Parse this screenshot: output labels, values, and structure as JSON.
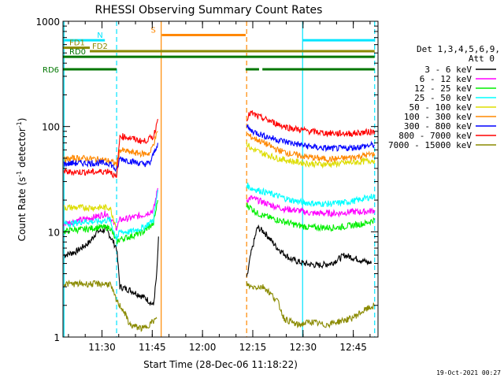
{
  "colors": {
    "bg": "#ffffff",
    "axis": "#000000",
    "cyan": "#00e5ff",
    "orange": "#ff8800",
    "olive": "#8a8a00",
    "green": "#007700"
  },
  "chart_data": {
    "type": "line",
    "title": "RHESSI Observing Summary Count Rates",
    "xlabel": "Start Time (28-Dec-06 11:18:22)",
    "ylabel": "Count Rate (s",
    "ylabel_sup1": "-1",
    "ylabel_mid": " detector",
    "ylabel_sup2": "-1",
    "ylabel_end": ")",
    "x_unit": "minutes after 11:18:22",
    "xlim": [
      0,
      94
    ],
    "ylim": [
      1,
      1000
    ],
    "yscale": "log",
    "x_ticks": [
      {
        "label": "11:30",
        "t": 11.63
      },
      {
        "label": "11:45",
        "t": 26.63
      },
      {
        "label": "12:00",
        "t": 41.63
      },
      {
        "label": "12:15",
        "t": 56.63
      },
      {
        "label": "12:30",
        "t": 71.63
      },
      {
        "label": "12:45",
        "t": 86.63
      }
    ],
    "y_ticks": [
      {
        "label": "1",
        "v": 1
      },
      {
        "label": "10",
        "v": 10
      },
      {
        "label": "100",
        "v": 100
      },
      {
        "label": "1000",
        "v": 1000
      }
    ],
    "timestamp": "19-Oct-2021 00:27",
    "legend": {
      "position": "right",
      "header1": "Det 1,3,4,5,6,9,",
      "header2": "Att 0"
    },
    "flags": [
      {
        "label": "N",
        "color": "#00e5ff",
        "y": 660,
        "segments": [
          [
            0,
            12.5
          ],
          [
            71.5,
            93
          ]
        ]
      },
      {
        "label": "S",
        "color": "#ff8800",
        "y": 740,
        "segments": [
          [
            29.5,
            54.5
          ]
        ]
      },
      {
        "label": "FD1",
        "color": "#8a8a00",
        "y": 560,
        "segments": [
          [
            0,
            8
          ]
        ]
      },
      {
        "label": "FD2",
        "color": "#8a8a00",
        "y": 520,
        "segments": [
          [
            8,
            93
          ]
        ]
      },
      {
        "label": "RD0",
        "color": "#007700",
        "y": 460,
        "segments": [
          [
            0,
            93
          ]
        ]
      },
      {
        "label": "RD6",
        "color": "#007700",
        "y": 350,
        "segments": [
          [
            0,
            16
          ],
          [
            54.5,
            58.5
          ],
          [
            59.5,
            93
          ]
        ]
      }
    ],
    "vlines": [
      {
        "t": 0.3,
        "color": "#00e5ff",
        "style": "solid"
      },
      {
        "t": 16.0,
        "color": "#00e5ff",
        "style": "dashed"
      },
      {
        "t": 29.3,
        "color": "#ff8800",
        "style": "solid"
      },
      {
        "t": 54.8,
        "color": "#ff8800",
        "style": "dashed"
      },
      {
        "t": 71.5,
        "color": "#00e5ff",
        "style": "solid"
      },
      {
        "t": 93.0,
        "color": "#00e5ff",
        "style": "dashed"
      }
    ],
    "series": [
      {
        "name": "3 - 6 keV",
        "color": "#000000",
        "points": [
          [
            0.3,
            6
          ],
          [
            4,
            6.5
          ],
          [
            8,
            8
          ],
          [
            10,
            10
          ],
          [
            13,
            10.5
          ],
          [
            16,
            7
          ],
          [
            17,
            3
          ],
          [
            20,
            2.8
          ],
          [
            23,
            2.5
          ],
          [
            25,
            2.3
          ],
          [
            27,
            2
          ],
          [
            28,
            4
          ],
          [
            28.5,
            9
          ],
          null,
          [
            54.8,
            3.5
          ],
          [
            56,
            6
          ],
          [
            58,
            11
          ],
          [
            60,
            10
          ],
          [
            64,
            7
          ],
          [
            68,
            5.5
          ],
          [
            72,
            5
          ],
          [
            76,
            4.8
          ],
          [
            80,
            5
          ],
          [
            84,
            6
          ],
          [
            88,
            5.5
          ],
          [
            92,
            5
          ]
        ]
      },
      {
        "name": "6 - 12 keV",
        "color": "#ff00ff",
        "points": [
          [
            0.3,
            12
          ],
          [
            3,
            12.5
          ],
          [
            6,
            13
          ],
          [
            10,
            14
          ],
          [
            13,
            15
          ],
          [
            16,
            11
          ],
          [
            17,
            13
          ],
          [
            20,
            13.5
          ],
          [
            24,
            14.5
          ],
          [
            27,
            16
          ],
          [
            28.3,
            26
          ],
          null,
          [
            54.8,
            20
          ],
          [
            56,
            21
          ],
          [
            58,
            20
          ],
          [
            62,
            18
          ],
          [
            66,
            16.5
          ],
          [
            70,
            16
          ],
          [
            74,
            15
          ],
          [
            78,
            15
          ],
          [
            82,
            15
          ],
          [
            86,
            15.5
          ],
          [
            90,
            15.5
          ],
          [
            93,
            16
          ]
        ]
      },
      {
        "name": "12 - 25 keV",
        "color": "#00ee00",
        "points": [
          [
            0.3,
            10
          ],
          [
            3,
            10.5
          ],
          [
            6,
            10.5
          ],
          [
            10,
            11
          ],
          [
            14,
            11
          ],
          [
            16,
            8
          ],
          [
            17,
            8.5
          ],
          [
            20,
            9
          ],
          [
            24,
            10
          ],
          [
            27,
            12
          ],
          [
            28.3,
            20
          ],
          null,
          [
            54.8,
            18
          ],
          [
            56,
            17
          ],
          [
            58,
            15
          ],
          [
            62,
            13.5
          ],
          [
            66,
            12.5
          ],
          [
            70,
            11.5
          ],
          [
            74,
            11
          ],
          [
            78,
            11
          ],
          [
            82,
            11
          ],
          [
            86,
            11.5
          ],
          [
            90,
            12
          ],
          [
            93,
            13
          ]
        ]
      },
      {
        "name": "25 - 50 keV",
        "color": "#00ffff",
        "points": [
          [
            0.3,
            12
          ],
          [
            3,
            12
          ],
          [
            6,
            12.5
          ],
          [
            10,
            12.5
          ],
          [
            14,
            13
          ],
          [
            16,
            8.5
          ],
          [
            17,
            10
          ],
          [
            20,
            10
          ],
          [
            24,
            11
          ],
          [
            27,
            13
          ],
          [
            28.3,
            25
          ],
          null,
          [
            54.8,
            28
          ],
          [
            56,
            26
          ],
          [
            60,
            24
          ],
          [
            64,
            22
          ],
          [
            68,
            20
          ],
          [
            72,
            19
          ],
          [
            76,
            18.5
          ],
          [
            80,
            18.5
          ],
          [
            84,
            19
          ],
          [
            88,
            20
          ],
          [
            93,
            22
          ]
        ]
      },
      {
        "name": "50 - 100 keV",
        "color": "#dddd00",
        "points": [
          [
            0.3,
            17
          ],
          [
            3,
            17
          ],
          [
            6,
            17
          ],
          [
            10,
            17
          ],
          [
            14,
            17
          ],
          [
            16,
            11
          ],
          null,
          [
            54.8,
            70
          ],
          [
            56,
            62
          ],
          [
            60,
            55
          ],
          [
            64,
            50
          ],
          [
            68,
            47
          ],
          [
            72,
            45
          ],
          [
            76,
            44
          ],
          [
            80,
            44
          ],
          [
            84,
            45
          ],
          [
            88,
            46
          ],
          [
            93,
            48
          ]
        ]
      },
      {
        "name": "100 - 300 keV",
        "color": "#ff8800",
        "points": [
          [
            0.3,
            48
          ],
          [
            3,
            50
          ],
          [
            6,
            50
          ],
          [
            10,
            49
          ],
          [
            14,
            47
          ],
          [
            16,
            44
          ],
          [
            17,
            60
          ],
          [
            20,
            57
          ],
          [
            24,
            55
          ],
          [
            26,
            56
          ],
          [
            28.3,
            90
          ],
          null,
          [
            54.8,
            85
          ],
          [
            56,
            80
          ],
          [
            60,
            70
          ],
          [
            64,
            60
          ],
          [
            68,
            55
          ],
          [
            72,
            52
          ],
          [
            76,
            50
          ],
          [
            80,
            49
          ],
          [
            84,
            50
          ],
          [
            88,
            52
          ],
          [
            93,
            55
          ]
        ]
      },
      {
        "name": "300 - 800 keV",
        "color": "#0000ff",
        "points": [
          [
            0.3,
            44
          ],
          [
            3,
            45
          ],
          [
            6,
            45
          ],
          [
            10,
            45
          ],
          [
            14,
            45
          ],
          [
            16,
            38
          ],
          [
            17,
            50
          ],
          [
            20,
            47
          ],
          [
            24,
            44
          ],
          [
            26,
            45
          ],
          [
            28.3,
            70
          ],
          null,
          [
            54.8,
            100
          ],
          [
            56,
            92
          ],
          [
            60,
            82
          ],
          [
            64,
            75
          ],
          [
            68,
            70
          ],
          [
            72,
            66
          ],
          [
            76,
            63
          ],
          [
            80,
            62
          ],
          [
            84,
            62
          ],
          [
            88,
            64
          ],
          [
            93,
            67
          ]
        ]
      },
      {
        "name": "800 - 7000 keV",
        "color": "#ff0000",
        "points": [
          [
            0.3,
            37
          ],
          [
            3,
            37
          ],
          [
            6,
            37
          ],
          [
            10,
            37
          ],
          [
            14,
            38
          ],
          [
            16,
            32
          ],
          [
            17,
            82
          ],
          [
            20,
            78
          ],
          [
            24,
            72
          ],
          [
            27,
            80
          ],
          [
            28.3,
            118
          ],
          null,
          [
            54.8,
            120
          ],
          [
            56,
            135
          ],
          [
            58,
            125
          ],
          [
            62,
            112
          ],
          [
            66,
            100
          ],
          [
            70,
            94
          ],
          [
            74,
            90
          ],
          [
            78,
            87
          ],
          [
            82,
            86
          ],
          [
            86,
            86
          ],
          [
            90,
            88
          ],
          [
            93,
            90
          ]
        ]
      },
      {
        "name": "7000 - 15000 keV",
        "color": "#8a8a00",
        "points": [
          [
            0.3,
            3.2
          ],
          [
            5,
            3.2
          ],
          [
            10,
            3.2
          ],
          [
            14,
            3.2
          ],
          [
            16,
            2.2
          ],
          [
            18,
            1.8
          ],
          [
            20,
            1.3
          ],
          [
            24,
            1.2
          ],
          [
            28,
            1.5
          ],
          null,
          [
            54.8,
            3.2
          ],
          [
            56,
            3
          ],
          [
            60,
            3
          ],
          [
            64,
            2.2
          ],
          [
            66,
            1.5
          ],
          [
            70,
            1.3
          ],
          [
            74,
            1.4
          ],
          [
            78,
            1.3
          ],
          [
            82,
            1.4
          ],
          [
            86,
            1.5
          ],
          [
            90,
            1.8
          ],
          [
            93,
            2.0
          ]
        ]
      }
    ]
  }
}
